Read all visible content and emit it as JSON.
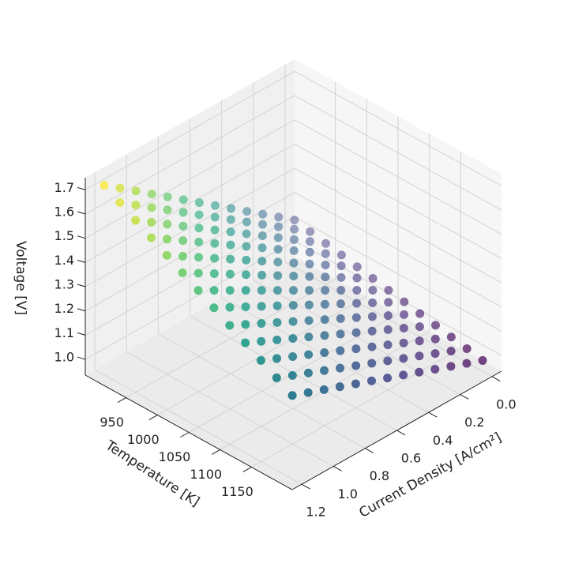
{
  "chart_data": {
    "type": "scatter3d",
    "xlabel": "Current Density [A/cm²]",
    "ylabel": "Temperature [K]",
    "zlabel": "Voltage [V]",
    "colormap": "viridis",
    "x": [
      0,
      0.1,
      0.2,
      0.3,
      0.4,
      0.5,
      0.6,
      0.7,
      0.8,
      0.9,
      1.0,
      1.1,
      1.2
    ],
    "y": [
      900,
      925,
      950,
      975,
      1000,
      1025,
      1050,
      1075,
      1100,
      1125,
      1150,
      1175,
      1200
    ],
    "z": [
      [
        1.13,
        1.179,
        1.228,
        1.277,
        1.326,
        1.375,
        1.424,
        1.473,
        1.522,
        1.571,
        1.62,
        1.669,
        1.718
      ],
      [
        1.118,
        1.165,
        1.212,
        1.259,
        1.306,
        1.353,
        1.4,
        1.447,
        1.494,
        1.541,
        1.588,
        1.635,
        1.682
      ],
      [
        1.105,
        1.15,
        1.195,
        1.24,
        1.285,
        1.33,
        1.375,
        1.42,
        1.465,
        1.51,
        1.555,
        1.6,
        1.645
      ],
      [
        1.093,
        1.136,
        1.179,
        1.222,
        1.265,
        1.308,
        1.351,
        1.394,
        1.437,
        1.48,
        1.523,
        1.566,
        1.609
      ],
      [
        1.08,
        1.121,
        1.162,
        1.203,
        1.244,
        1.285,
        1.326,
        1.367,
        1.408,
        1.449,
        1.49,
        1.531,
        1.572
      ],
      [
        1.068,
        1.107,
        1.146,
        1.185,
        1.224,
        1.263,
        1.302,
        1.341,
        1.38,
        1.419,
        1.458,
        1.497,
        1.536
      ],
      [
        1.055,
        1.092,
        1.129,
        1.166,
        1.203,
        1.24,
        1.277,
        1.314,
        1.351,
        1.388,
        1.425,
        1.462,
        1.499
      ],
      [
        1.043,
        1.078,
        1.113,
        1.148,
        1.183,
        1.218,
        1.253,
        1.288,
        1.323,
        1.358,
        1.393,
        1.428,
        1.463
      ],
      [
        1.03,
        1.063,
        1.096,
        1.129,
        1.162,
        1.195,
        1.228,
        1.261,
        1.294,
        1.327,
        1.36,
        1.393,
        1.426
      ],
      [
        1.018,
        1.049,
        1.08,
        1.111,
        1.142,
        1.173,
        1.204,
        1.235,
        1.266,
        1.297,
        1.328,
        1.359,
        1.39
      ],
      [
        1.005,
        1.034,
        1.063,
        1.092,
        1.121,
        1.15,
        1.179,
        1.208,
        1.237,
        1.266,
        1.295,
        1.324,
        1.353
      ],
      [
        0.993,
        1.02,
        1.047,
        1.074,
        1.101,
        1.128,
        1.155,
        1.182,
        1.209,
        1.236,
        1.263,
        1.29,
        1.317
      ],
      [
        0.98,
        1.005,
        1.03,
        1.055,
        1.08,
        1.105,
        1.13,
        1.155,
        1.18,
        1.205,
        1.23,
        1.255,
        1.28
      ]
    ],
    "xlim": [
      -0.06,
      1.26
    ],
    "ylim": [
      885,
      1215
    ],
    "zlim": [
      0.935,
      1.75
    ],
    "xticks": [
      {
        "value": 0,
        "label": "0.0"
      },
      0.2,
      0.4,
      0.6,
      0.8,
      {
        "value": 1.0,
        "label": "1.0"
      },
      1.2
    ],
    "yticks": [
      950,
      1000,
      1050,
      1100,
      1150
    ],
    "zticks": [
      {
        "value": 1.0,
        "label": "1.0"
      },
      1.1,
      1.2,
      1.3,
      1.4,
      1.5,
      1.6,
      1.7
    ],
    "grid": true
  }
}
